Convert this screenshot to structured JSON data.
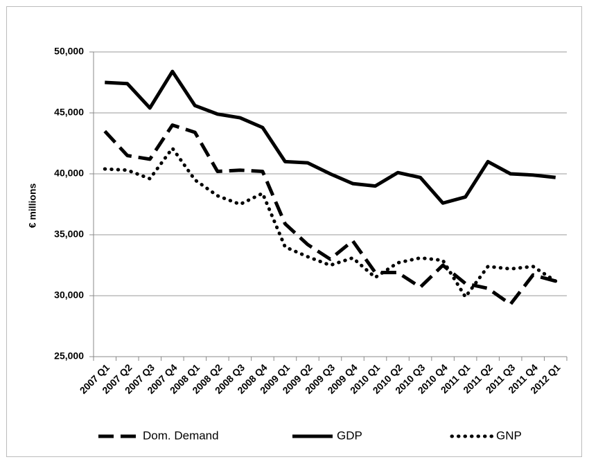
{
  "chart_data": {
    "type": "line",
    "y_label": "€ millions",
    "categories": [
      "2007 Q1",
      "2007 Q2",
      "2007 Q3",
      "2007 Q4",
      "2008 Q1",
      "2008 Q2",
      "2008 Q3",
      "2008 Q4",
      "2009 Q1",
      "2009 Q2",
      "2009 Q3",
      "2009 Q4",
      "2010 Q1",
      "2010 Q2",
      "2010 Q3",
      "2010 Q4",
      "2011 Q1",
      "2011 Q2",
      "2011 Q3",
      "2011 Q4",
      "2012 Q1"
    ],
    "series": [
      {
        "name": "Dom. Demand",
        "color": "#000000",
        "line_style": "dashed",
        "values": [
          43500,
          41500,
          41200,
          44000,
          43400,
          40200,
          40300,
          40200,
          35900,
          34200,
          33000,
          34500,
          31900,
          31900,
          30700,
          32500,
          31000,
          30600,
          29300,
          31700,
          31200
        ]
      },
      {
        "name": "GDP",
        "color": "#000000",
        "line_style": "solid",
        "values": [
          47500,
          47400,
          45400,
          48400,
          45600,
          44900,
          44600,
          43800,
          41000,
          40900,
          40000,
          39200,
          39000,
          40100,
          39700,
          37600,
          38100,
          41000,
          40000,
          39900,
          39700
        ]
      },
      {
        "name": "GNP",
        "color": "#000000",
        "line_style": "dotted",
        "values": [
          40400,
          40300,
          39600,
          42100,
          39500,
          38200,
          37500,
          38400,
          34000,
          33200,
          32500,
          33100,
          31500,
          32700,
          33100,
          32900,
          29900,
          32400,
          32200,
          32400,
          31200
        ]
      }
    ],
    "ylim": [
      25000,
      50000
    ],
    "yticks": [
      {
        "value": 25000,
        "label": "25,000"
      },
      {
        "value": 30000,
        "label": "30,000"
      },
      {
        "value": 35000,
        "label": "35,000"
      },
      {
        "value": 40000,
        "label": "40,000"
      },
      {
        "value": 45000,
        "label": "45,000"
      },
      {
        "value": 50000,
        "label": "50,000"
      }
    ],
    "grid": true,
    "legend_position": "bottom"
  }
}
